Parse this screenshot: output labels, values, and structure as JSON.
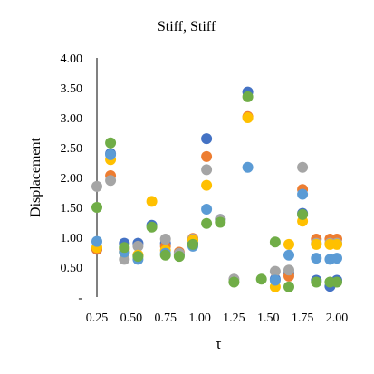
{
  "chart_data": {
    "type": "scatter",
    "title": "Stiff, Stiff",
    "xlabel": "τ",
    "ylabel": "Displacement",
    "xlim": [
      0.25,
      2.0
    ],
    "ylim": [
      0,
      4.0
    ],
    "x_ticks": [
      0.25,
      0.5,
      0.75,
      1.0,
      1.25,
      1.5,
      1.75,
      2.0
    ],
    "x_tick_labels": [
      "0.25",
      "0.50",
      "0.75",
      "1.00",
      "1.25",
      "1.50",
      "1.75",
      "2.00"
    ],
    "y_ticks": [
      0,
      0.5,
      1.0,
      1.5,
      2.0,
      2.5,
      3.0,
      3.5,
      4.0
    ],
    "y_tick_labels": [
      "-",
      "0.50",
      "1.00",
      "1.50",
      "2.00",
      "2.50",
      "3.00",
      "3.50",
      "4.00"
    ],
    "grid": false,
    "legend": "none",
    "series": [
      {
        "color": "#4472C4",
        "points": [
          [
            0.25,
            0.8
          ],
          [
            0.35,
            2.4
          ],
          [
            0.45,
            0.9
          ],
          [
            0.55,
            0.9
          ],
          [
            0.65,
            1.2
          ],
          [
            0.75,
            0.9
          ],
          [
            0.85,
            0.7
          ],
          [
            0.95,
            0.9
          ],
          [
            1.05,
            2.65
          ],
          [
            1.15,
            1.3
          ],
          [
            1.35,
            3.43
          ],
          [
            1.55,
            0.3
          ],
          [
            1.65,
            0.4
          ],
          [
            1.75,
            1.4
          ],
          [
            1.85,
            0.28
          ],
          [
            1.95,
            0.18
          ],
          [
            2.0,
            0.28
          ]
        ]
      },
      {
        "color": "#ED7D31",
        "points": [
          [
            0.25,
            0.8
          ],
          [
            0.35,
            2.03
          ],
          [
            0.45,
            0.8
          ],
          [
            0.55,
            0.7
          ],
          [
            0.75,
            0.85
          ],
          [
            0.85,
            0.75
          ],
          [
            0.95,
            0.98
          ],
          [
            1.05,
            2.35
          ],
          [
            1.35,
            3.02
          ],
          [
            1.65,
            0.35
          ],
          [
            1.75,
            1.8
          ],
          [
            1.85,
            0.97
          ],
          [
            1.95,
            0.97
          ],
          [
            2.0,
            0.97
          ]
        ]
      },
      {
        "color": "#A5A5A5",
        "points": [
          [
            0.25,
            1.85
          ],
          [
            0.35,
            1.95
          ],
          [
            0.45,
            0.63
          ],
          [
            0.55,
            0.85
          ],
          [
            0.75,
            0.97
          ],
          [
            0.85,
            0.73
          ],
          [
            0.95,
            0.97
          ],
          [
            1.05,
            2.13
          ],
          [
            1.15,
            1.3
          ],
          [
            1.25,
            0.3
          ],
          [
            1.55,
            0.43
          ],
          [
            1.65,
            0.45
          ],
          [
            1.75,
            2.17
          ],
          [
            1.85,
            0.9
          ],
          [
            1.95,
            0.9
          ],
          [
            2.0,
            0.9
          ]
        ]
      },
      {
        "color": "#FFC000",
        "points": [
          [
            0.25,
            0.83
          ],
          [
            0.35,
            2.3
          ],
          [
            0.45,
            0.75
          ],
          [
            0.55,
            0.7
          ],
          [
            0.65,
            1.6
          ],
          [
            0.75,
            0.78
          ],
          [
            0.95,
            0.95
          ],
          [
            1.05,
            1.87
          ],
          [
            1.35,
            3.0
          ],
          [
            1.55,
            0.17
          ],
          [
            1.65,
            0.88
          ],
          [
            1.75,
            1.27
          ],
          [
            1.85,
            0.88
          ],
          [
            1.95,
            0.88
          ],
          [
            2.0,
            0.88
          ]
        ]
      },
      {
        "color": "#5B9BD5",
        "points": [
          [
            0.25,
            0.93
          ],
          [
            0.35,
            2.38
          ],
          [
            0.45,
            0.75
          ],
          [
            0.55,
            0.63
          ],
          [
            0.75,
            0.73
          ],
          [
            0.95,
            0.85
          ],
          [
            1.05,
            1.47
          ],
          [
            1.35,
            2.17
          ],
          [
            1.55,
            0.28
          ],
          [
            1.65,
            0.7
          ],
          [
            1.75,
            1.72
          ],
          [
            1.85,
            0.65
          ],
          [
            1.95,
            0.63
          ],
          [
            2.0,
            0.65
          ]
        ]
      },
      {
        "color": "#70AD47",
        "points": [
          [
            0.25,
            1.5
          ],
          [
            0.35,
            2.58
          ],
          [
            0.45,
            0.83
          ],
          [
            0.55,
            0.68
          ],
          [
            0.65,
            1.17
          ],
          [
            0.75,
            0.7
          ],
          [
            0.85,
            0.68
          ],
          [
            0.95,
            0.88
          ],
          [
            1.05,
            1.23
          ],
          [
            1.15,
            1.25
          ],
          [
            1.25,
            0.25
          ],
          [
            1.35,
            3.35
          ],
          [
            1.45,
            0.3
          ],
          [
            1.55,
            0.92
          ],
          [
            1.65,
            0.17
          ],
          [
            1.75,
            1.38
          ],
          [
            1.85,
            0.25
          ],
          [
            1.95,
            0.25
          ],
          [
            2.0,
            0.25
          ]
        ]
      }
    ]
  }
}
